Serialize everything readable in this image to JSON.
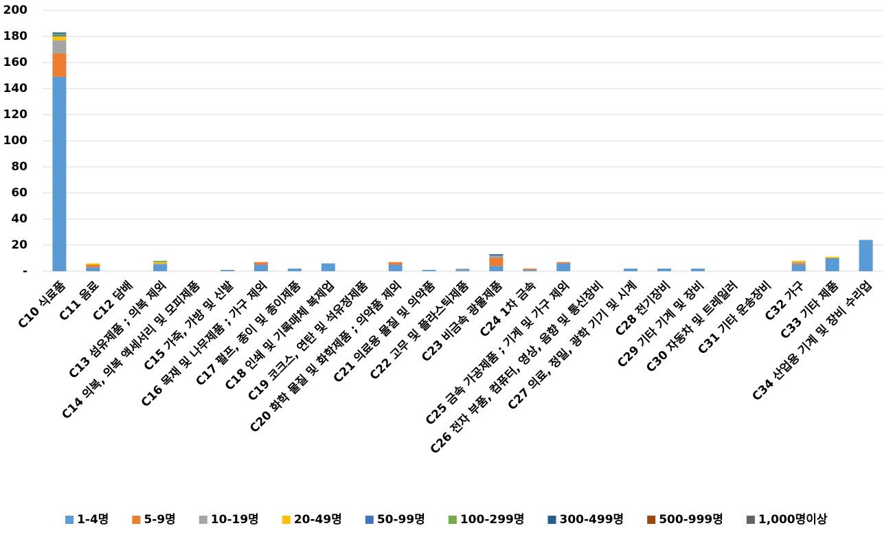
{
  "chart_data": {
    "type": "stacked_bar",
    "categories": [
      "C10 식료품",
      "C11 음료",
      "C12 담배",
      "C13 섬유제품 ; 의복 제외",
      "C14 의복, 의복 액세서리 및 모피제품",
      "C15 가죽, 가방 및 신발",
      "C16 목재 및 나무제품 ; 가구 제외",
      "C17 펄프, 종이 및 종이제품",
      "C18 인쇄 및 기록매체 복제업",
      "C19 코크스, 연탄 및 석유정제품",
      "C20 화학 물질 및 화학제품 ; 의약품 제외",
      "C21 의료용 물질 및 의약품",
      "C22 고무 및 플라스틱제품",
      "C23 비금속 광물제품",
      "C24 1차 금속",
      "C25 금속 가공제품 ; 기계 및 가구 제외",
      "C26 전자 부품, 컴퓨터, 영상, 음향 및 통신장비",
      "C27 의료, 정밀, 광학 기기 및 시계",
      "C28 전기장비",
      "C29 기타 기계 및 장비",
      "C30 자동차 및 트레일러",
      "C31 기타 운송장비",
      "C32 가구",
      "C33 기타 제품",
      "C34 산업용 기계 및 장비 수리업"
    ],
    "series": [
      {
        "name": "1-4명",
        "color": "#5b9bd5",
        "values": [
          149,
          3,
          0,
          5,
          0,
          1,
          5,
          2,
          6,
          0,
          5,
          1,
          1,
          4,
          1,
          6,
          0,
          2,
          2,
          2,
          0,
          0,
          5,
          10,
          24
        ]
      },
      {
        "name": "5-9명",
        "color": "#ed7d31",
        "values": [
          18,
          2,
          0,
          0,
          0,
          0,
          2,
          0,
          0,
          0,
          2,
          0,
          0,
          6,
          1,
          1,
          0,
          0,
          0,
          0,
          0,
          0,
          1,
          0,
          0
        ]
      },
      {
        "name": "10-19명",
        "color": "#a5a5a5",
        "values": [
          10,
          0,
          0,
          1,
          0,
          0,
          0,
          0,
          0,
          0,
          0,
          0,
          1,
          2,
          0,
          0,
          0,
          0,
          0,
          0,
          0,
          0,
          1,
          0,
          0
        ]
      },
      {
        "name": "20-49명",
        "color": "#ffc000",
        "values": [
          3,
          1,
          0,
          1,
          0,
          0,
          0,
          0,
          0,
          0,
          0,
          0,
          0,
          0,
          0,
          0,
          0,
          0,
          0,
          0,
          0,
          0,
          1,
          1,
          0
        ]
      },
      {
        "name": "50-99명",
        "color": "#4472c4",
        "values": [
          1,
          0,
          0,
          0,
          0,
          0,
          0,
          0,
          0,
          0,
          0,
          0,
          0,
          0,
          0,
          0,
          0,
          0,
          0,
          0,
          0,
          0,
          0,
          0,
          0
        ]
      },
      {
        "name": "100-299명",
        "color": "#70ad47",
        "values": [
          1,
          0,
          0,
          1,
          0,
          0,
          0,
          0,
          0,
          0,
          0,
          0,
          0,
          0,
          0,
          0,
          0,
          0,
          0,
          0,
          0,
          0,
          0,
          0,
          0
        ]
      },
      {
        "name": "300-499명",
        "color": "#255e91",
        "values": [
          1,
          0,
          0,
          0,
          0,
          0,
          0,
          0,
          0,
          0,
          0,
          0,
          0,
          1,
          0,
          0,
          0,
          0,
          0,
          0,
          0,
          0,
          0,
          0,
          0
        ]
      },
      {
        "name": "500-999명",
        "color": "#9e480e",
        "values": [
          0,
          0,
          0,
          0,
          0,
          0,
          0,
          0,
          0,
          0,
          0,
          0,
          0,
          0,
          0,
          0,
          0,
          0,
          0,
          0,
          0,
          0,
          0,
          0,
          0
        ]
      },
      {
        "name": "1,000명이상",
        "color": "#636363",
        "values": [
          0,
          0,
          0,
          0,
          0,
          0,
          0,
          0,
          0,
          0,
          0,
          0,
          0,
          0,
          0,
          0,
          0,
          0,
          0,
          0,
          0,
          0,
          0,
          0,
          0
        ]
      }
    ],
    "ylim": [
      0,
      200
    ],
    "yticks": [
      {
        "value": 0,
        "label": "-"
      },
      20,
      40,
      60,
      80,
      100,
      120,
      140,
      160,
      180,
      200
    ],
    "grid": true,
    "legend": "bottom"
  }
}
